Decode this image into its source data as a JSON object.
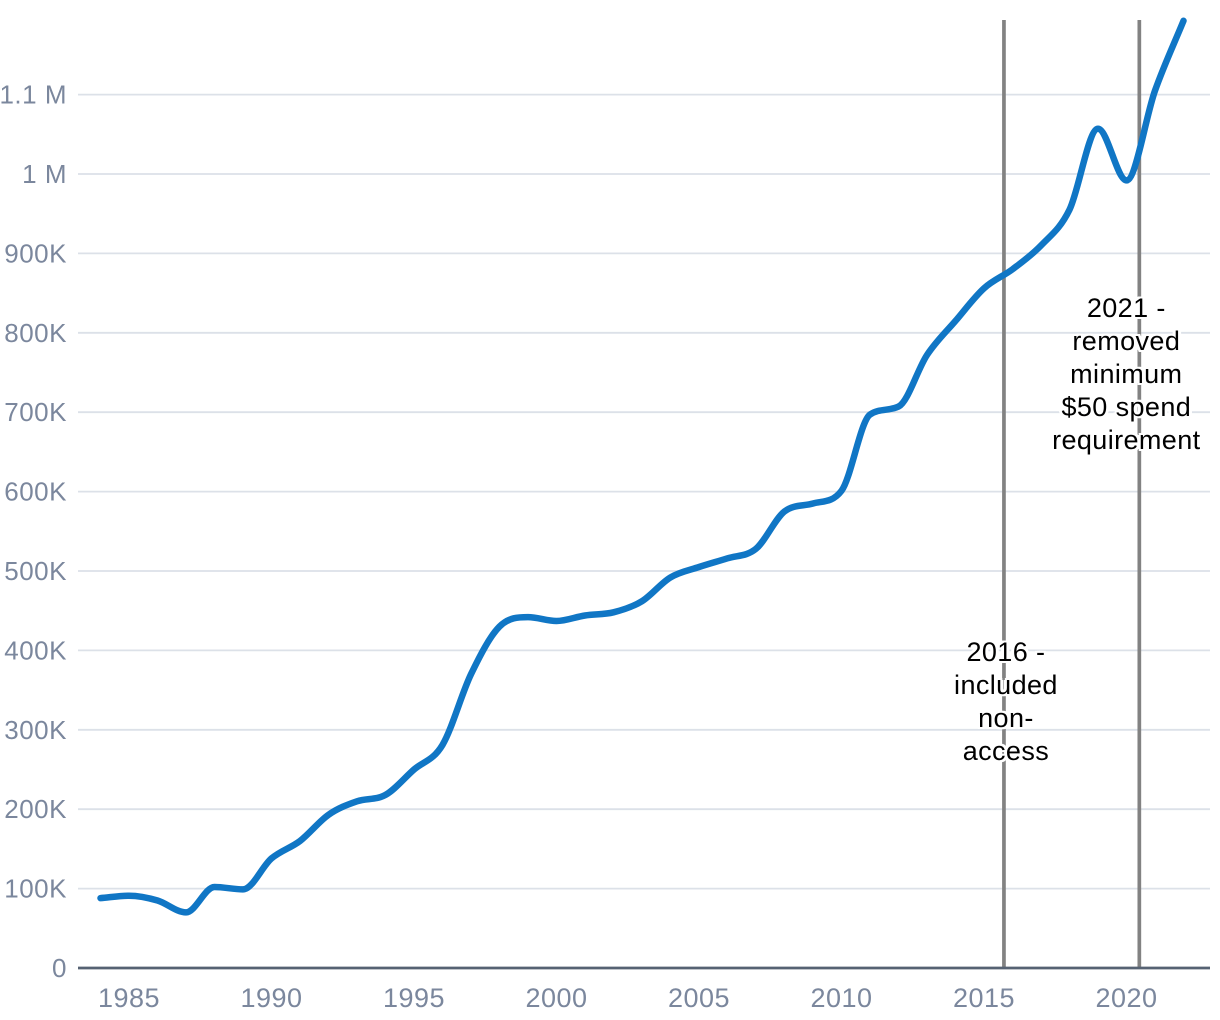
{
  "chart_data": {
    "type": "line",
    "title": "",
    "xlabel": "",
    "ylabel": "",
    "grid": "horizontal",
    "legend_position": "none",
    "xlim": [
      1983.5,
      2022.6
    ],
    "ylim": [
      0,
      1200000
    ],
    "x": [
      1984,
      1985,
      1986,
      1987,
      1988,
      1989,
      1990,
      1991,
      1992,
      1993,
      1994,
      1995,
      1996,
      1997,
      1998,
      1999,
      2000,
      2001,
      2002,
      2003,
      2004,
      2005,
      2006,
      2007,
      2008,
      2009,
      2010,
      2011,
      2012,
      2013,
      2014,
      2015,
      2016,
      2017,
      2018,
      2019,
      2020,
      2021,
      2022
    ],
    "y": [
      88000,
      91000,
      85000,
      70000,
      102000,
      99000,
      138000,
      160000,
      193000,
      210000,
      218000,
      250000,
      281000,
      370000,
      430000,
      442000,
      437000,
      444000,
      448000,
      462000,
      492000,
      505000,
      516000,
      528000,
      575000,
      585000,
      601000,
      697000,
      707000,
      772000,
      815000,
      856000,
      880000,
      910000,
      955000,
      1057000,
      992000,
      1105000,
      1193000
    ],
    "y_ticks": [
      {
        "value": 0,
        "label": "0"
      },
      {
        "value": 100000,
        "label": "100K"
      },
      {
        "value": 200000,
        "label": "200K"
      },
      {
        "value": 300000,
        "label": "300K"
      },
      {
        "value": 400000,
        "label": "400K"
      },
      {
        "value": 500000,
        "label": "500K"
      },
      {
        "value": 600000,
        "label": "600K"
      },
      {
        "value": 700000,
        "label": "700K"
      },
      {
        "value": 800000,
        "label": "800K"
      },
      {
        "value": 900000,
        "label": "900K"
      },
      {
        "value": 1000000,
        "label": "1 M"
      },
      {
        "value": 1100000,
        "label": "1.1 M"
      }
    ],
    "x_ticks": [
      {
        "value": 1985,
        "label": "1985"
      },
      {
        "value": 1990,
        "label": "1990"
      },
      {
        "value": 1995,
        "label": "1995"
      },
      {
        "value": 2000,
        "label": "2000"
      },
      {
        "value": 2005,
        "label": "2005"
      },
      {
        "value": 2010,
        "label": "2010"
      },
      {
        "value": 2015,
        "label": "2015"
      },
      {
        "value": 2020,
        "label": "2020"
      }
    ],
    "annotations": [
      {
        "axis_x": 2015.7,
        "lines": [
          "2016 -",
          "included",
          "non-",
          "access"
        ]
      },
      {
        "axis_x": 2020.45,
        "lines": [
          "2021 -",
          "removed",
          "minimum",
          "$50 spend",
          "requirement"
        ]
      }
    ]
  },
  "colors": {
    "line": "#1076c5",
    "gridline": "#dce1e8",
    "axis_line": "#566273",
    "tick_label": "#7b879d",
    "event_line": "#828282",
    "annotation_text": "#000000",
    "background": "#ffffff"
  }
}
